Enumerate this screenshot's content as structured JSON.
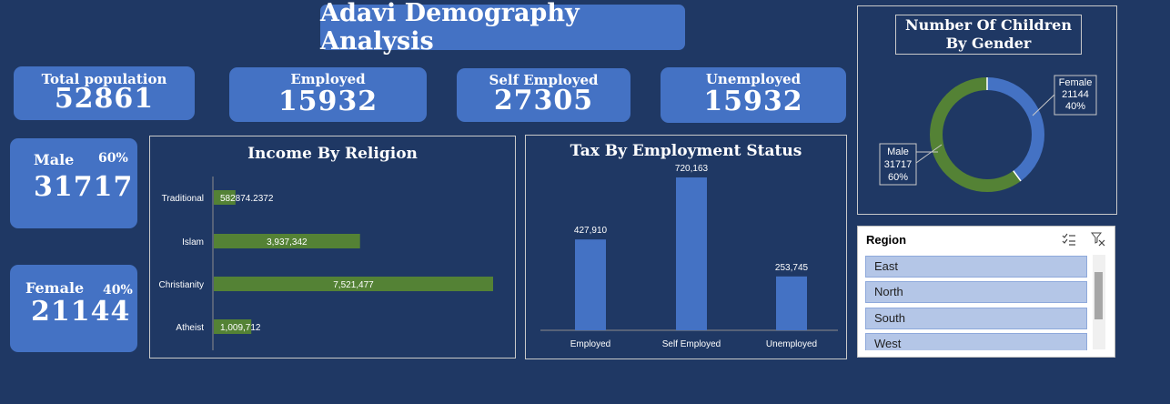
{
  "dashboard": {
    "title": "Adavi Demography Analysis"
  },
  "kpis": [
    {
      "label": "Total population",
      "value": "52861"
    },
    {
      "label": "Employed",
      "value": "15932"
    },
    {
      "label": "Self Employed",
      "value": "27305"
    },
    {
      "label": "Unemployed",
      "value": "15932"
    }
  ],
  "gender_cards": {
    "male": {
      "label": "Male",
      "pct": "60%",
      "value": "31717"
    },
    "female": {
      "label": "Female",
      "pct": "40%",
      "value": "21144"
    }
  },
  "income_chart": {
    "title": "Income By Religion",
    "categories": [
      "Traditional",
      "Islam",
      "Christianity",
      "Atheist"
    ],
    "values": [
      582874.2372,
      3937342,
      7521477,
      1009712
    ],
    "labels": [
      "582874.2372",
      "3,937,342",
      "7,521,477",
      "1,009,712"
    ],
    "color": "#548235"
  },
  "tax_chart": {
    "title": "Tax By Employment Status",
    "categories": [
      "Employed",
      "Self Employed",
      "Unemployed"
    ],
    "values": [
      427910,
      720163,
      253745
    ],
    "labels": [
      "427,910",
      "720,163",
      "253,745"
    ],
    "color": "#4472c4"
  },
  "donut": {
    "title_line1": "Number Of Children",
    "title_line2": "By Gender",
    "female": {
      "name": "Female",
      "value": "21144",
      "pct": "40%",
      "share": 0.4,
      "color": "#4472c4"
    },
    "male": {
      "name": "Male",
      "value": "31717",
      "pct": "60%",
      "share": 0.6,
      "color": "#548235"
    }
  },
  "chart_data": [
    {
      "type": "bar",
      "title": "Income By Religion",
      "categories": [
        "Traditional",
        "Islam",
        "Christianity",
        "Atheist"
      ],
      "values": [
        582874.2372,
        3937342,
        7521477,
        1009712
      ],
      "orientation": "horizontal"
    },
    {
      "type": "bar",
      "title": "Tax By Employment Status",
      "categories": [
        "Employed",
        "Self Employed",
        "Unemployed"
      ],
      "values": [
        427910,
        720163,
        253745
      ]
    },
    {
      "type": "pie",
      "title": "Number Of Children By Gender",
      "categories": [
        "Female",
        "Male"
      ],
      "values": [
        21144,
        31717
      ],
      "percent": [
        40,
        60
      ]
    }
  ],
  "slicer": {
    "title": "Region",
    "items": [
      "East",
      "North",
      "South",
      "West"
    ],
    "multiselect_icon": "multi-select-icon",
    "clear_icon": "clear-filter-icon"
  }
}
